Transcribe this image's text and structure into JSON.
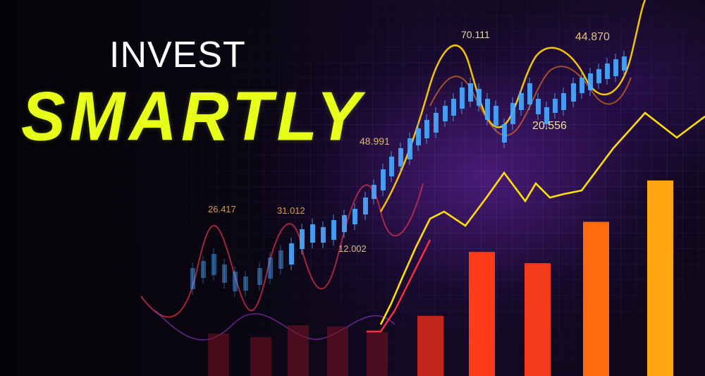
{
  "headline": {
    "line1": "INVEST",
    "line2": "SMARTLY"
  },
  "price_labels": [
    {
      "text": "70.111",
      "color": "#e8d9a0"
    },
    {
      "text": "44.870",
      "color": "#e8c080"
    },
    {
      "text": "48.991",
      "color": "#e6b860"
    },
    {
      "text": "20.556",
      "color": "#e8e0a0"
    },
    {
      "text": "26.417",
      "color": "#d99a50"
    },
    {
      "text": "31.012",
      "color": "#d99a50"
    },
    {
      "text": "12.002",
      "color": "#d9b880"
    }
  ],
  "colors": {
    "headline_accent": "#e8ff1a",
    "candle": "#4aa8ff",
    "line_yellow": "#ffe000",
    "line_orange": "#ff8a1a",
    "line_red": "#e0203a",
    "grid": "#4b4fb0"
  },
  "bars": [
    {
      "level": 0.16,
      "color": "#c2251a"
    },
    {
      "level": 0.33,
      "color": "#ff3b1a"
    },
    {
      "level": 0.3,
      "color": "#f33a1b"
    },
    {
      "level": 0.41,
      "color": "#ff6a10"
    },
    {
      "level": 0.52,
      "color": "#ffa510"
    }
  ]
}
